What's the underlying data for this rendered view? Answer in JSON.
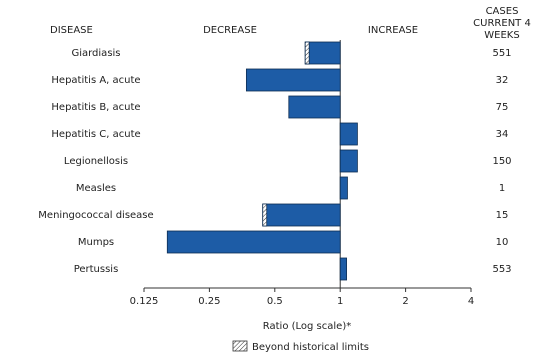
{
  "chart_data": {
    "type": "hbar",
    "categories": [
      "Giardiasis",
      "Hepatitis A, acute",
      "Hepatitis B, acute",
      "Hepatitis C, acute",
      "Legionellosis",
      "Measles",
      "Meningococcal disease",
      "Mumps",
      "Pertussis"
    ],
    "values": [
      0.69,
      0.37,
      0.58,
      1.2,
      1.2,
      1.08,
      0.44,
      0.16,
      1.07
    ],
    "beyond_historical_limits": [
      true,
      false,
      false,
      false,
      false,
      false,
      true,
      false,
      false
    ],
    "cases": [
      551,
      32,
      75,
      34,
      150,
      1,
      15,
      10,
      553
    ],
    "headers": {
      "disease": "DISEASE",
      "decrease": "DECREASE",
      "increase": "INCREASE",
      "cases": "CASES CURRENT 4 WEEKS"
    },
    "xlabel": "Ratio (Log scale)*",
    "legend": "Beyond historical limits",
    "color": "#1d5ca6",
    "xscale": "log",
    "xlim": [
      0.125,
      4
    ],
    "xticks": [
      0.125,
      0.25,
      0.5,
      1,
      2,
      4
    ]
  }
}
